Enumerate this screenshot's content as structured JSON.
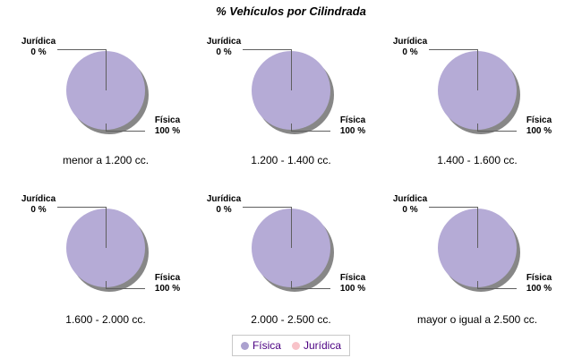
{
  "page": {
    "background": "#ffffff"
  },
  "chart_data": {
    "type": "pie",
    "title": "% Vehículos por Cilindrada",
    "layout": "grid of 6 pie charts, 3 columns x 2 rows, legend bottom-center",
    "series_labels": [
      "Física",
      "Jurídica"
    ],
    "unit": "%",
    "charts": [
      {
        "category": "menor a 1.200 cc.",
        "slices": [
          {
            "label": "Física",
            "value": 100
          },
          {
            "label": "Jurídica",
            "value": 0
          }
        ]
      },
      {
        "category": "1.200 - 1.400 cc.",
        "slices": [
          {
            "label": "Física",
            "value": 100
          },
          {
            "label": "Jurídica",
            "value": 0
          }
        ]
      },
      {
        "category": "1.400 - 1.600 cc.",
        "slices": [
          {
            "label": "Física",
            "value": 100
          },
          {
            "label": "Jurídica",
            "value": 0
          }
        ]
      },
      {
        "category": "1.600 - 2.000 cc.",
        "slices": [
          {
            "label": "Física",
            "value": 100
          },
          {
            "label": "Jurídica",
            "value": 0
          }
        ]
      },
      {
        "category": "2.000 - 2.500 cc.",
        "slices": [
          {
            "label": "Física",
            "value": 100
          },
          {
            "label": "Jurídica",
            "value": 0
          }
        ]
      },
      {
        "category": "mayor o igual a 2.500 cc.",
        "slices": [
          {
            "label": "Física",
            "value": 100
          },
          {
            "label": "Jurídica",
            "value": 0
          }
        ]
      }
    ],
    "legend": {
      "position": "bottom-center",
      "entries": [
        {
          "label": "Física",
          "color": "#aba1cf"
        },
        {
          "label": "Jurídica",
          "color": "#f8c3c9"
        }
      ],
      "text_color": "#4b0082"
    },
    "colors": {
      "pie_fill": "#b5abd6",
      "pie_shadow": "#878787",
      "leader_line": "#5f5f5f",
      "annotation_text": "#000000"
    }
  }
}
